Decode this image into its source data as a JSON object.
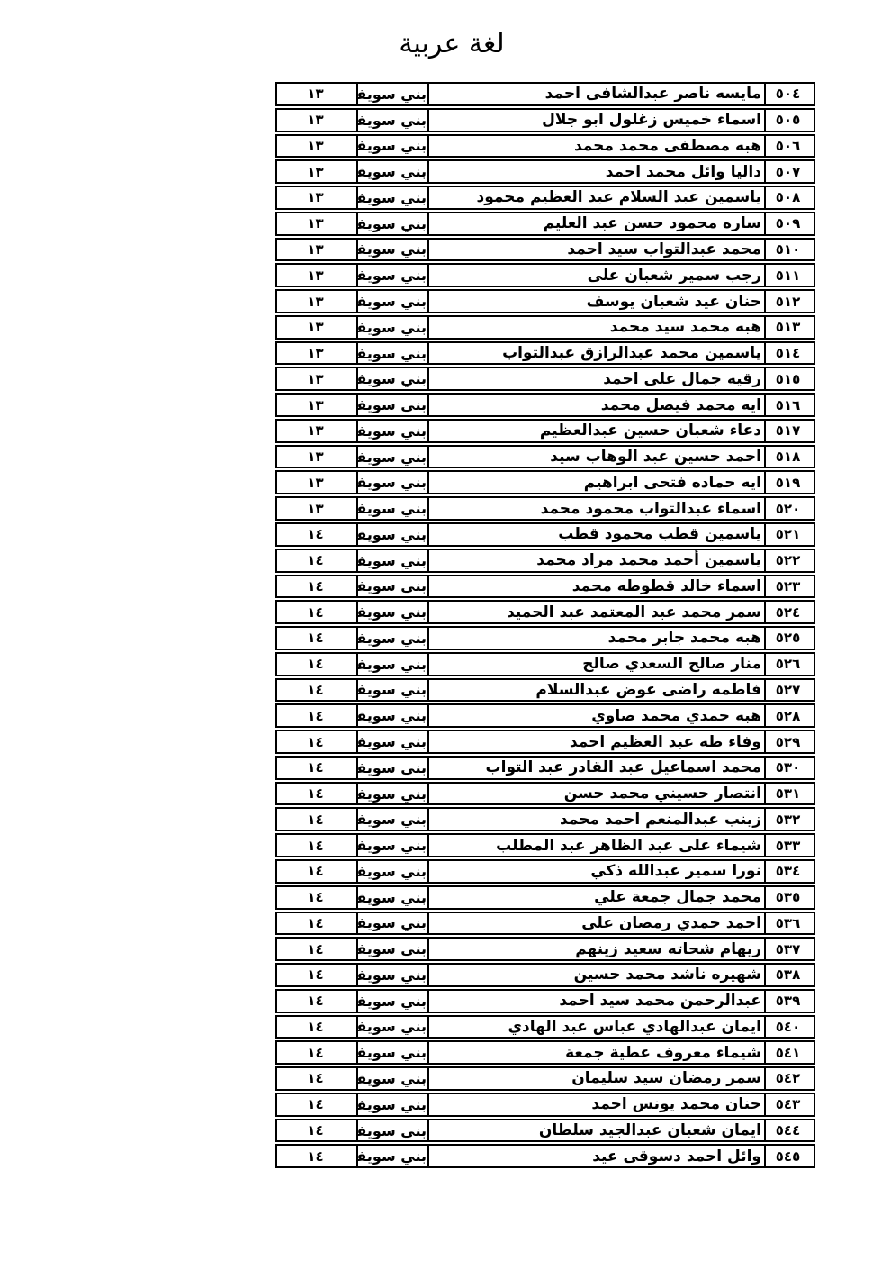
{
  "title": "لغة عربية",
  "table": {
    "governorate_display": "بني سويفـــ",
    "rows": [
      {
        "no": "٥٠٤",
        "name": "مايسه ناصر عبدالشافى احمد",
        "grade": "١٣"
      },
      {
        "no": "٥٠٥",
        "name": "اسماء خميس زغلول ابو جلال",
        "grade": "١٣"
      },
      {
        "no": "٥٠٦",
        "name": "هبه مصطفى محمد محمد",
        "grade": "١٣"
      },
      {
        "no": "٥٠٧",
        "name": "داليا وائل محمد احمد",
        "grade": "١٣"
      },
      {
        "no": "٥٠٨",
        "name": "ياسمين عبد السلام عبد العظيم محمود",
        "grade": "١٣"
      },
      {
        "no": "٥٠٩",
        "name": "ساره محمود حسن عبد العليم",
        "grade": "١٣"
      },
      {
        "no": "٥١٠",
        "name": "محمد عبدالتواب سيد احمد",
        "grade": "١٣"
      },
      {
        "no": "٥١١",
        "name": "رجب سمير شعبان على",
        "grade": "١٣"
      },
      {
        "no": "٥١٢",
        "name": "حنان عيد شعبان يوسف",
        "grade": "١٣"
      },
      {
        "no": "٥١٣",
        "name": "هبه محمد سيد محمد",
        "grade": "١٣"
      },
      {
        "no": "٥١٤",
        "name": "ياسمين محمد عبدالرازق عبدالتواب",
        "grade": "١٣"
      },
      {
        "no": "٥١٥",
        "name": "رقيه جمال على احمد",
        "grade": "١٣"
      },
      {
        "no": "٥١٦",
        "name": "ايه محمد فيصل محمد",
        "grade": "١٣"
      },
      {
        "no": "٥١٧",
        "name": "دعاء شعبان حسين عبدالعظيم",
        "grade": "١٣"
      },
      {
        "no": "٥١٨",
        "name": "احمد حسين عبد الوهاب سيد",
        "grade": "١٣"
      },
      {
        "no": "٥١٩",
        "name": "ايه حماده فتحى ابراهيم",
        "grade": "١٣"
      },
      {
        "no": "٥٢٠",
        "name": "اسماء عبدالتواب محمود محمد",
        "grade": "١٣"
      },
      {
        "no": "٥٢١",
        "name": "ياسمين قطب محمود قطب",
        "grade": "١٤"
      },
      {
        "no": "٥٢٢",
        "name": "ياسمين أحمد محمد مراد محمد",
        "grade": "١٤"
      },
      {
        "no": "٥٢٣",
        "name": "اسماء خالد قطوطه محمد",
        "grade": "١٤"
      },
      {
        "no": "٥٢٤",
        "name": "سمر محمد عبد المعتمد عبد الحميد",
        "grade": "١٤"
      },
      {
        "no": "٥٢٥",
        "name": "هبه محمد جابر محمد",
        "grade": "١٤"
      },
      {
        "no": "٥٢٦",
        "name": "منار صالح السعدي صالح",
        "grade": "١٤"
      },
      {
        "no": "٥٢٧",
        "name": "فاطمه راضى عوض عبدالسلام",
        "grade": "١٤"
      },
      {
        "no": "٥٢٨",
        "name": "هبه حمدي محمد صاوي",
        "grade": "١٤"
      },
      {
        "no": "٥٢٩",
        "name": "وفاء طه عبد العظيم احمد",
        "grade": "١٤"
      },
      {
        "no": "٥٣٠",
        "name": "محمد اسماعيل عبد القادر عبد التواب",
        "grade": "١٤"
      },
      {
        "no": "٥٣١",
        "name": "انتصار حسيني محمد حسن",
        "grade": "١٤"
      },
      {
        "no": "٥٣٢",
        "name": "زينب عبدالمنعم احمد محمد",
        "grade": "١٤"
      },
      {
        "no": "٥٣٣",
        "name": "شيماء على عبد الظاهر عبد المطلب",
        "grade": "١٤"
      },
      {
        "no": "٥٣٤",
        "name": "نورا سمير عبدالله ذكي",
        "grade": "١٤"
      },
      {
        "no": "٥٣٥",
        "name": "محمد جمال جمعة علي",
        "grade": "١٤"
      },
      {
        "no": "٥٣٦",
        "name": "احمد حمدي رمضان على",
        "grade": "١٤"
      },
      {
        "no": "٥٣٧",
        "name": "ريهام شحاته سعيد زينهم",
        "grade": "١٤"
      },
      {
        "no": "٥٣٨",
        "name": "شهيره ناشد محمد حسين",
        "grade": "١٤"
      },
      {
        "no": "٥٣٩",
        "name": "عبدالرحمن محمد سيد احمد",
        "grade": "١٤"
      },
      {
        "no": "٥٤٠",
        "name": "ايمان عبدالهادي عباس عبد الهادي",
        "grade": "١٤"
      },
      {
        "no": "٥٤١",
        "name": "شيماء معروف عطية جمعة",
        "grade": "١٤"
      },
      {
        "no": "٥٤٢",
        "name": "سمر رمضان سيد سليمان",
        "grade": "١٤"
      },
      {
        "no": "٥٤٣",
        "name": "حنان محمد يونس احمد",
        "grade": "١٤"
      },
      {
        "no": "٥٤٤",
        "name": "ايمان شعبان عبدالجيد سلطان",
        "grade": "١٤"
      },
      {
        "no": "٥٤٥",
        "name": "وائل احمد دسوقى عيد",
        "grade": "١٤"
      }
    ]
  }
}
